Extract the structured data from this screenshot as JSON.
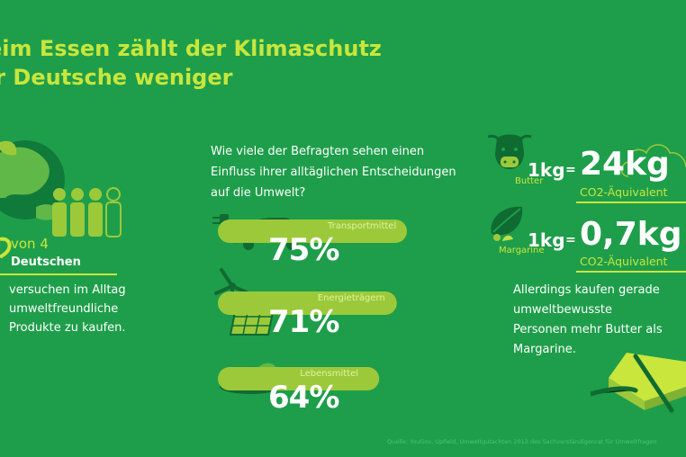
{
  "title": {
    "line1": "eim Essen zählt der Klimaschutz",
    "line2": "ir Deutsche weniger"
  },
  "left": {
    "von": "von 4",
    "deutschen": "Deutschen",
    "desc": [
      "versuchen im Alltag",
      "umweltfreundliche",
      "Produkte zu kaufen."
    ]
  },
  "middle": {
    "question": "Wie viele der Befragten sehen einen Einfluss ihrer alltäglichen Entscheidungen auf die Umwelt?"
  },
  "chart_data": {
    "type": "bar",
    "categories": [
      "Transportmittel",
      "Energieträgern",
      "Lebensmittel"
    ],
    "values": [
      75,
      71,
      64
    ],
    "value_labels": [
      "75%",
      "71%",
      "64%"
    ],
    "ylim": [
      0,
      100
    ]
  },
  "right": {
    "butter": {
      "label": "Butter",
      "small": "1kg",
      "eq": "=",
      "big": "24kg",
      "unit": "CO2-Äquivalent"
    },
    "margarine": {
      "label": "Margarine",
      "small": "1kg",
      "eq": "=",
      "big": "0,7kg",
      "unit": "CO2-Äquivalent"
    },
    "desc": [
      "Allerdings kaufen gerade",
      "umweltbewusste",
      "Personen mehr Butter als",
      "Margarine."
    ]
  },
  "source": "Quelle: YouGov, Upfield, Umweltgutachten 2013 des Sachverständigenrat für Umweltfragen",
  "colors": {
    "background": "#1e9e4a",
    "accent": "#c8e63c",
    "bar": "#9cc93a",
    "dark": "#0f6b32"
  },
  "icons": [
    "earth-icon",
    "people-icon",
    "car-icon",
    "wind-turbine-icon",
    "solar-panel-icon",
    "food-plate-icon",
    "cow-icon",
    "leaf-icon",
    "butter-block-icon",
    "cloud-icon"
  ]
}
